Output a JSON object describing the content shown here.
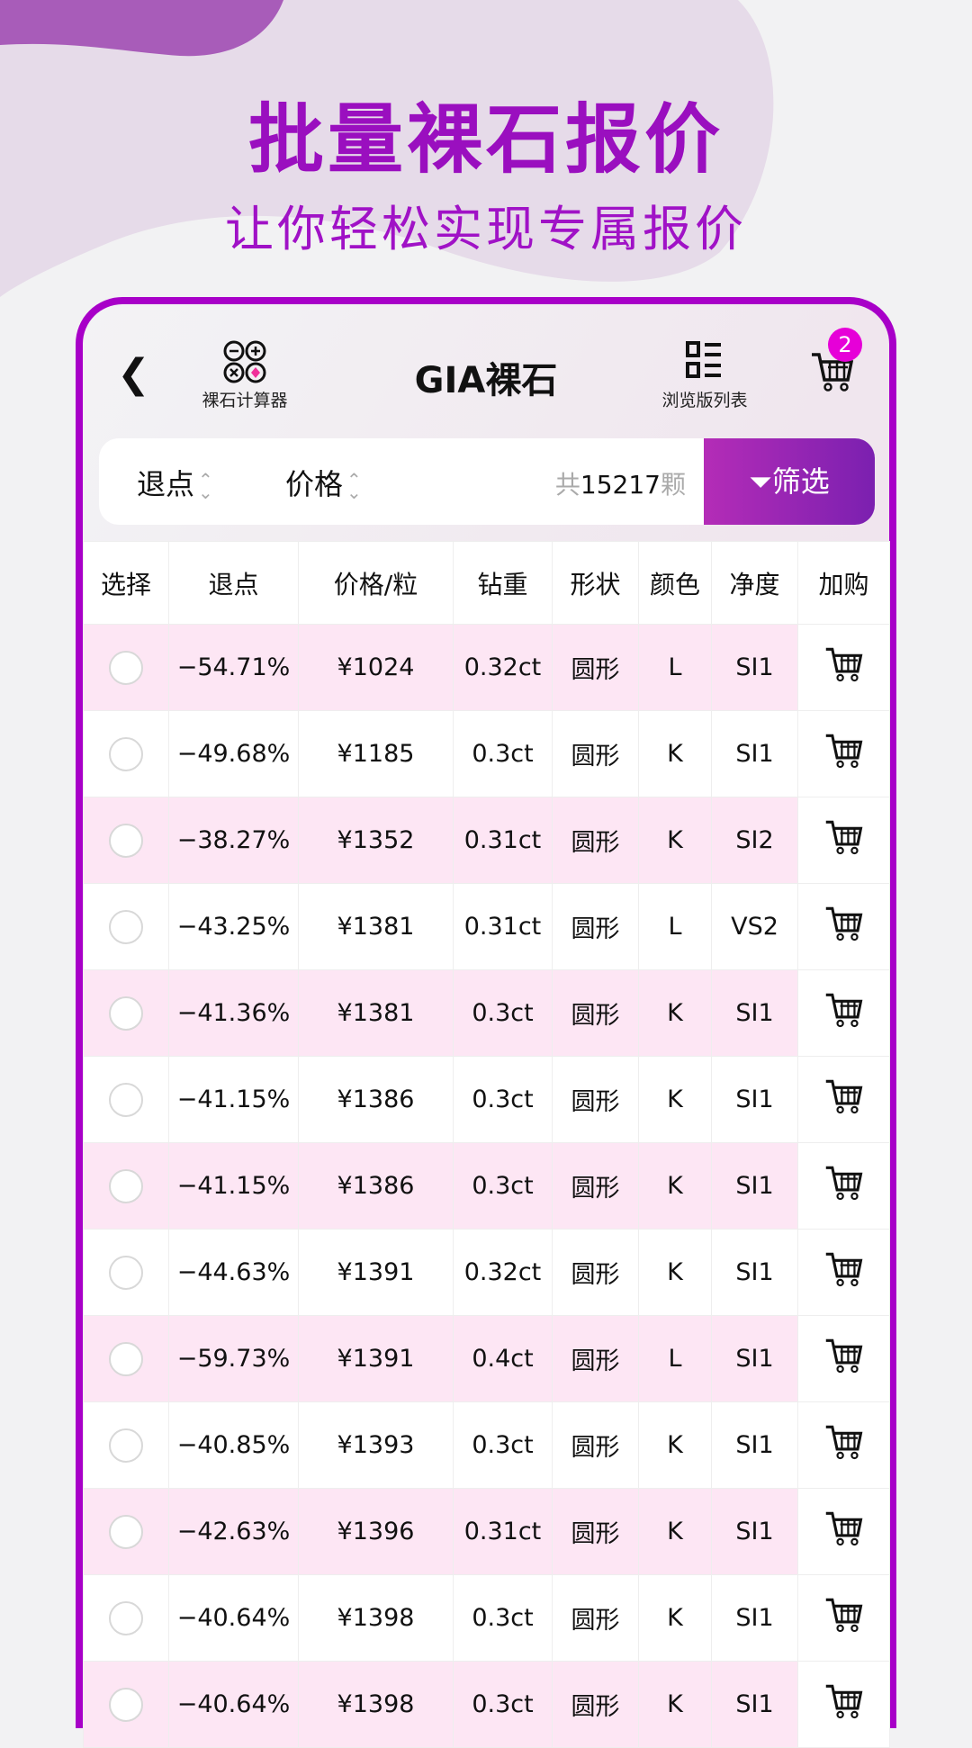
{
  "hero": {
    "title": "批量裸石报价",
    "subtitle": "让你轻松实现专属报价"
  },
  "header": {
    "title": "GIA裸石",
    "calculator_label": "裸石计算器",
    "list_view_label": "浏览版列表",
    "cart_count": "2"
  },
  "filter_bar": {
    "sort_discount": "退点",
    "sort_price": "价格",
    "count_prefix": "共",
    "count": "15217",
    "count_suffix": "颗",
    "filter_label": "筛选"
  },
  "columns": [
    "选择",
    "退点",
    "价格/粒",
    "钻重",
    "形状",
    "颜色",
    "净度",
    "加购"
  ],
  "rows": [
    {
      "discount": "−54.71%",
      "price": "¥1024",
      "carat": "0.32ct",
      "shape": "圆形",
      "color": "L",
      "clarity": "SI1"
    },
    {
      "discount": "−49.68%",
      "price": "¥1185",
      "carat": "0.3ct",
      "shape": "圆形",
      "color": "K",
      "clarity": "SI1"
    },
    {
      "discount": "−38.27%",
      "price": "¥1352",
      "carat": "0.31ct",
      "shape": "圆形",
      "color": "K",
      "clarity": "SI2"
    },
    {
      "discount": "−43.25%",
      "price": "¥1381",
      "carat": "0.31ct",
      "shape": "圆形",
      "color": "L",
      "clarity": "VS2"
    },
    {
      "discount": "−41.36%",
      "price": "¥1381",
      "carat": "0.3ct",
      "shape": "圆形",
      "color": "K",
      "clarity": "SI1"
    },
    {
      "discount": "−41.15%",
      "price": "¥1386",
      "carat": "0.3ct",
      "shape": "圆形",
      "color": "K",
      "clarity": "SI1"
    },
    {
      "discount": "−41.15%",
      "price": "¥1386",
      "carat": "0.3ct",
      "shape": "圆形",
      "color": "K",
      "clarity": "SI1"
    },
    {
      "discount": "−44.63%",
      "price": "¥1391",
      "carat": "0.32ct",
      "shape": "圆形",
      "color": "K",
      "clarity": "SI1"
    },
    {
      "discount": "−59.73%",
      "price": "¥1391",
      "carat": "0.4ct",
      "shape": "圆形",
      "color": "L",
      "clarity": "SI1"
    },
    {
      "discount": "−40.85%",
      "price": "¥1393",
      "carat": "0.3ct",
      "shape": "圆形",
      "color": "K",
      "clarity": "SI1"
    },
    {
      "discount": "−42.63%",
      "price": "¥1396",
      "carat": "0.31ct",
      "shape": "圆形",
      "color": "K",
      "clarity": "SI1"
    },
    {
      "discount": "−40.64%",
      "price": "¥1398",
      "carat": "0.3ct",
      "shape": "圆形",
      "color": "K",
      "clarity": "SI1"
    },
    {
      "discount": "−40.64%",
      "price": "¥1398",
      "carat": "0.3ct",
      "shape": "圆形",
      "color": "K",
      "clarity": "SI1"
    }
  ],
  "colors": {
    "brand": "#a800c8",
    "row_highlight": "#fde6f4",
    "badge": "#e600d8"
  }
}
